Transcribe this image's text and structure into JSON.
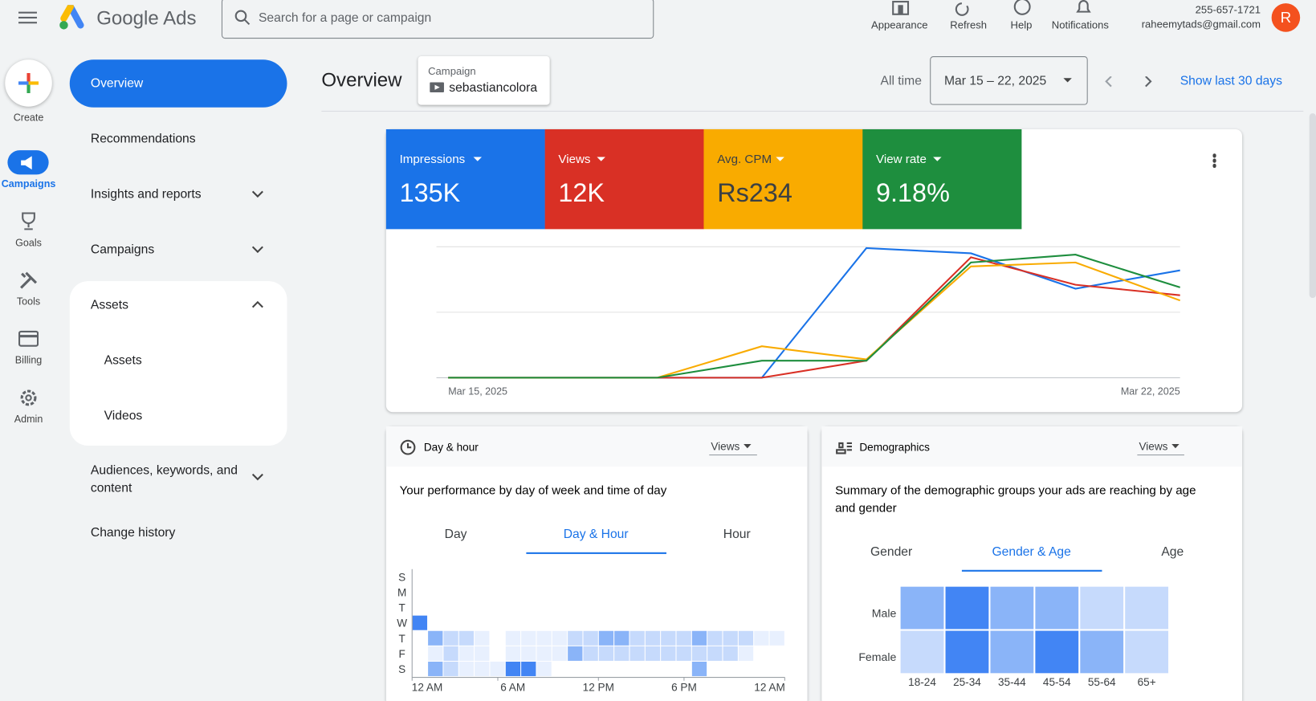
{
  "header": {
    "product": "Google Ads",
    "search_placeholder": "Search for a page or campaign",
    "actions": [
      "Appearance",
      "Refresh",
      "Help",
      "Notifications"
    ],
    "phone": "255-657-1721",
    "email": "raheemytads@gmail.com",
    "avatar": "R"
  },
  "rail": [
    "Create",
    "Campaigns",
    "Goals",
    "Tools",
    "Billing",
    "Admin"
  ],
  "nav": [
    "Overview",
    "Recommendations",
    "Insights and reports",
    "Campaigns",
    "Assets",
    "Assets",
    "Videos",
    "Audiences, keywords, and content",
    "Change history"
  ],
  "page": {
    "title": "Overview",
    "campaign_label": "Campaign",
    "campaign": "sebastiancolora",
    "range_label": "All time",
    "date_range": "Mar 15 – 22, 2025",
    "show_last": "Show last 30 days"
  },
  "metrics": [
    {
      "name": "Impressions",
      "value": "135K",
      "color": "#1a73e8"
    },
    {
      "name": "Views",
      "value": "12K",
      "color": "#d93025"
    },
    {
      "name": "Avg. CPM",
      "value": "Rs234",
      "color": "#f9ab00"
    },
    {
      "name": "View rate",
      "value": "9.18%",
      "color": "#1e8e3e"
    }
  ],
  "overview_chart": {
    "type": "line",
    "categories": [
      "Mar 15, 2025",
      null,
      null,
      null,
      null,
      null,
      null,
      "Mar 22, 2025"
    ],
    "ylim": [
      0,
      100
    ],
    "yticks": [
      0,
      50,
      100
    ],
    "grid": true,
    "series": [
      {
        "name": "Impressions",
        "color": "#1a73e8",
        "values": [
          0,
          0,
          0,
          0,
          99,
          95,
          68,
          82
        ]
      },
      {
        "name": "Views",
        "color": "#d93025",
        "values": [
          0,
          0,
          0,
          0,
          13,
          92,
          71,
          63
        ]
      },
      {
        "name": "Avg. CPM",
        "color": "#f9ab00",
        "values": [
          0,
          0,
          0,
          24,
          14,
          85,
          88,
          59
        ]
      },
      {
        "name": "View rate",
        "color": "#1e8e3e",
        "values": [
          0,
          0,
          0,
          13,
          13,
          88,
          94,
          69
        ]
      }
    ]
  },
  "level_colors": [
    "#ffffff",
    "#e8f0fe",
    "#c6dafc",
    "#8ab4f8",
    "#4285f4"
  ],
  "day_hour": {
    "title": "Day & hour",
    "metric": "Views",
    "description": "Your performance by day of week and time of day",
    "tabs": [
      "Day",
      "Day & Hour",
      "Hour"
    ],
    "rows": [
      "S",
      "M",
      "T",
      "W",
      "T",
      "F",
      "S"
    ],
    "x_labels": [
      "12 AM",
      "6 AM",
      "12 PM",
      "6 PM",
      "12 AM"
    ],
    "levels": [
      [
        0,
        0,
        0,
        0,
        0,
        0,
        0,
        0,
        0,
        0,
        0,
        0,
        0,
        0,
        0,
        0,
        0,
        0,
        0,
        0,
        0,
        0,
        0,
        0
      ],
      [
        0,
        0,
        0,
        0,
        0,
        0,
        0,
        0,
        0,
        0,
        0,
        0,
        0,
        0,
        0,
        0,
        0,
        0,
        0,
        0,
        0,
        0,
        0,
        0
      ],
      [
        0,
        0,
        0,
        0,
        0,
        0,
        0,
        0,
        0,
        0,
        0,
        0,
        0,
        0,
        0,
        0,
        0,
        0,
        0,
        0,
        0,
        0,
        0,
        0
      ],
      [
        4,
        0,
        0,
        0,
        0,
        0,
        0,
        0,
        0,
        0,
        0,
        0,
        0,
        0,
        0,
        0,
        0,
        0,
        0,
        0,
        0,
        0,
        0,
        0
      ],
      [
        0,
        3,
        2,
        2,
        1,
        0,
        1,
        1,
        1,
        1,
        2,
        2,
        3,
        3,
        2,
        2,
        2,
        2,
        3,
        2,
        2,
        2,
        1,
        1
      ],
      [
        0,
        1,
        2,
        1,
        1,
        0,
        1,
        1,
        1,
        1,
        3,
        2,
        2,
        2,
        2,
        2,
        2,
        2,
        2,
        2,
        2,
        1,
        0,
        0
      ],
      [
        0,
        3,
        2,
        1,
        1,
        1,
        4,
        4,
        1,
        0,
        0,
        0,
        0,
        0,
        0,
        0,
        0,
        0,
        3,
        0,
        0,
        0,
        0,
        0
      ]
    ]
  },
  "demographics": {
    "title": "Demographics",
    "metric": "Views",
    "description": "Summary of the demographic groups your ads are reaching by age and gender",
    "tabs": [
      "Gender",
      "Gender & Age",
      "Age"
    ],
    "rows": [
      "Male",
      "Female"
    ],
    "columns": [
      "18-24",
      "25-34",
      "35-44",
      "45-54",
      "55-64",
      "65+"
    ],
    "levels": [
      [
        3,
        4,
        3,
        3,
        2,
        2
      ],
      [
        2,
        4,
        3,
        4,
        3,
        2
      ]
    ]
  }
}
